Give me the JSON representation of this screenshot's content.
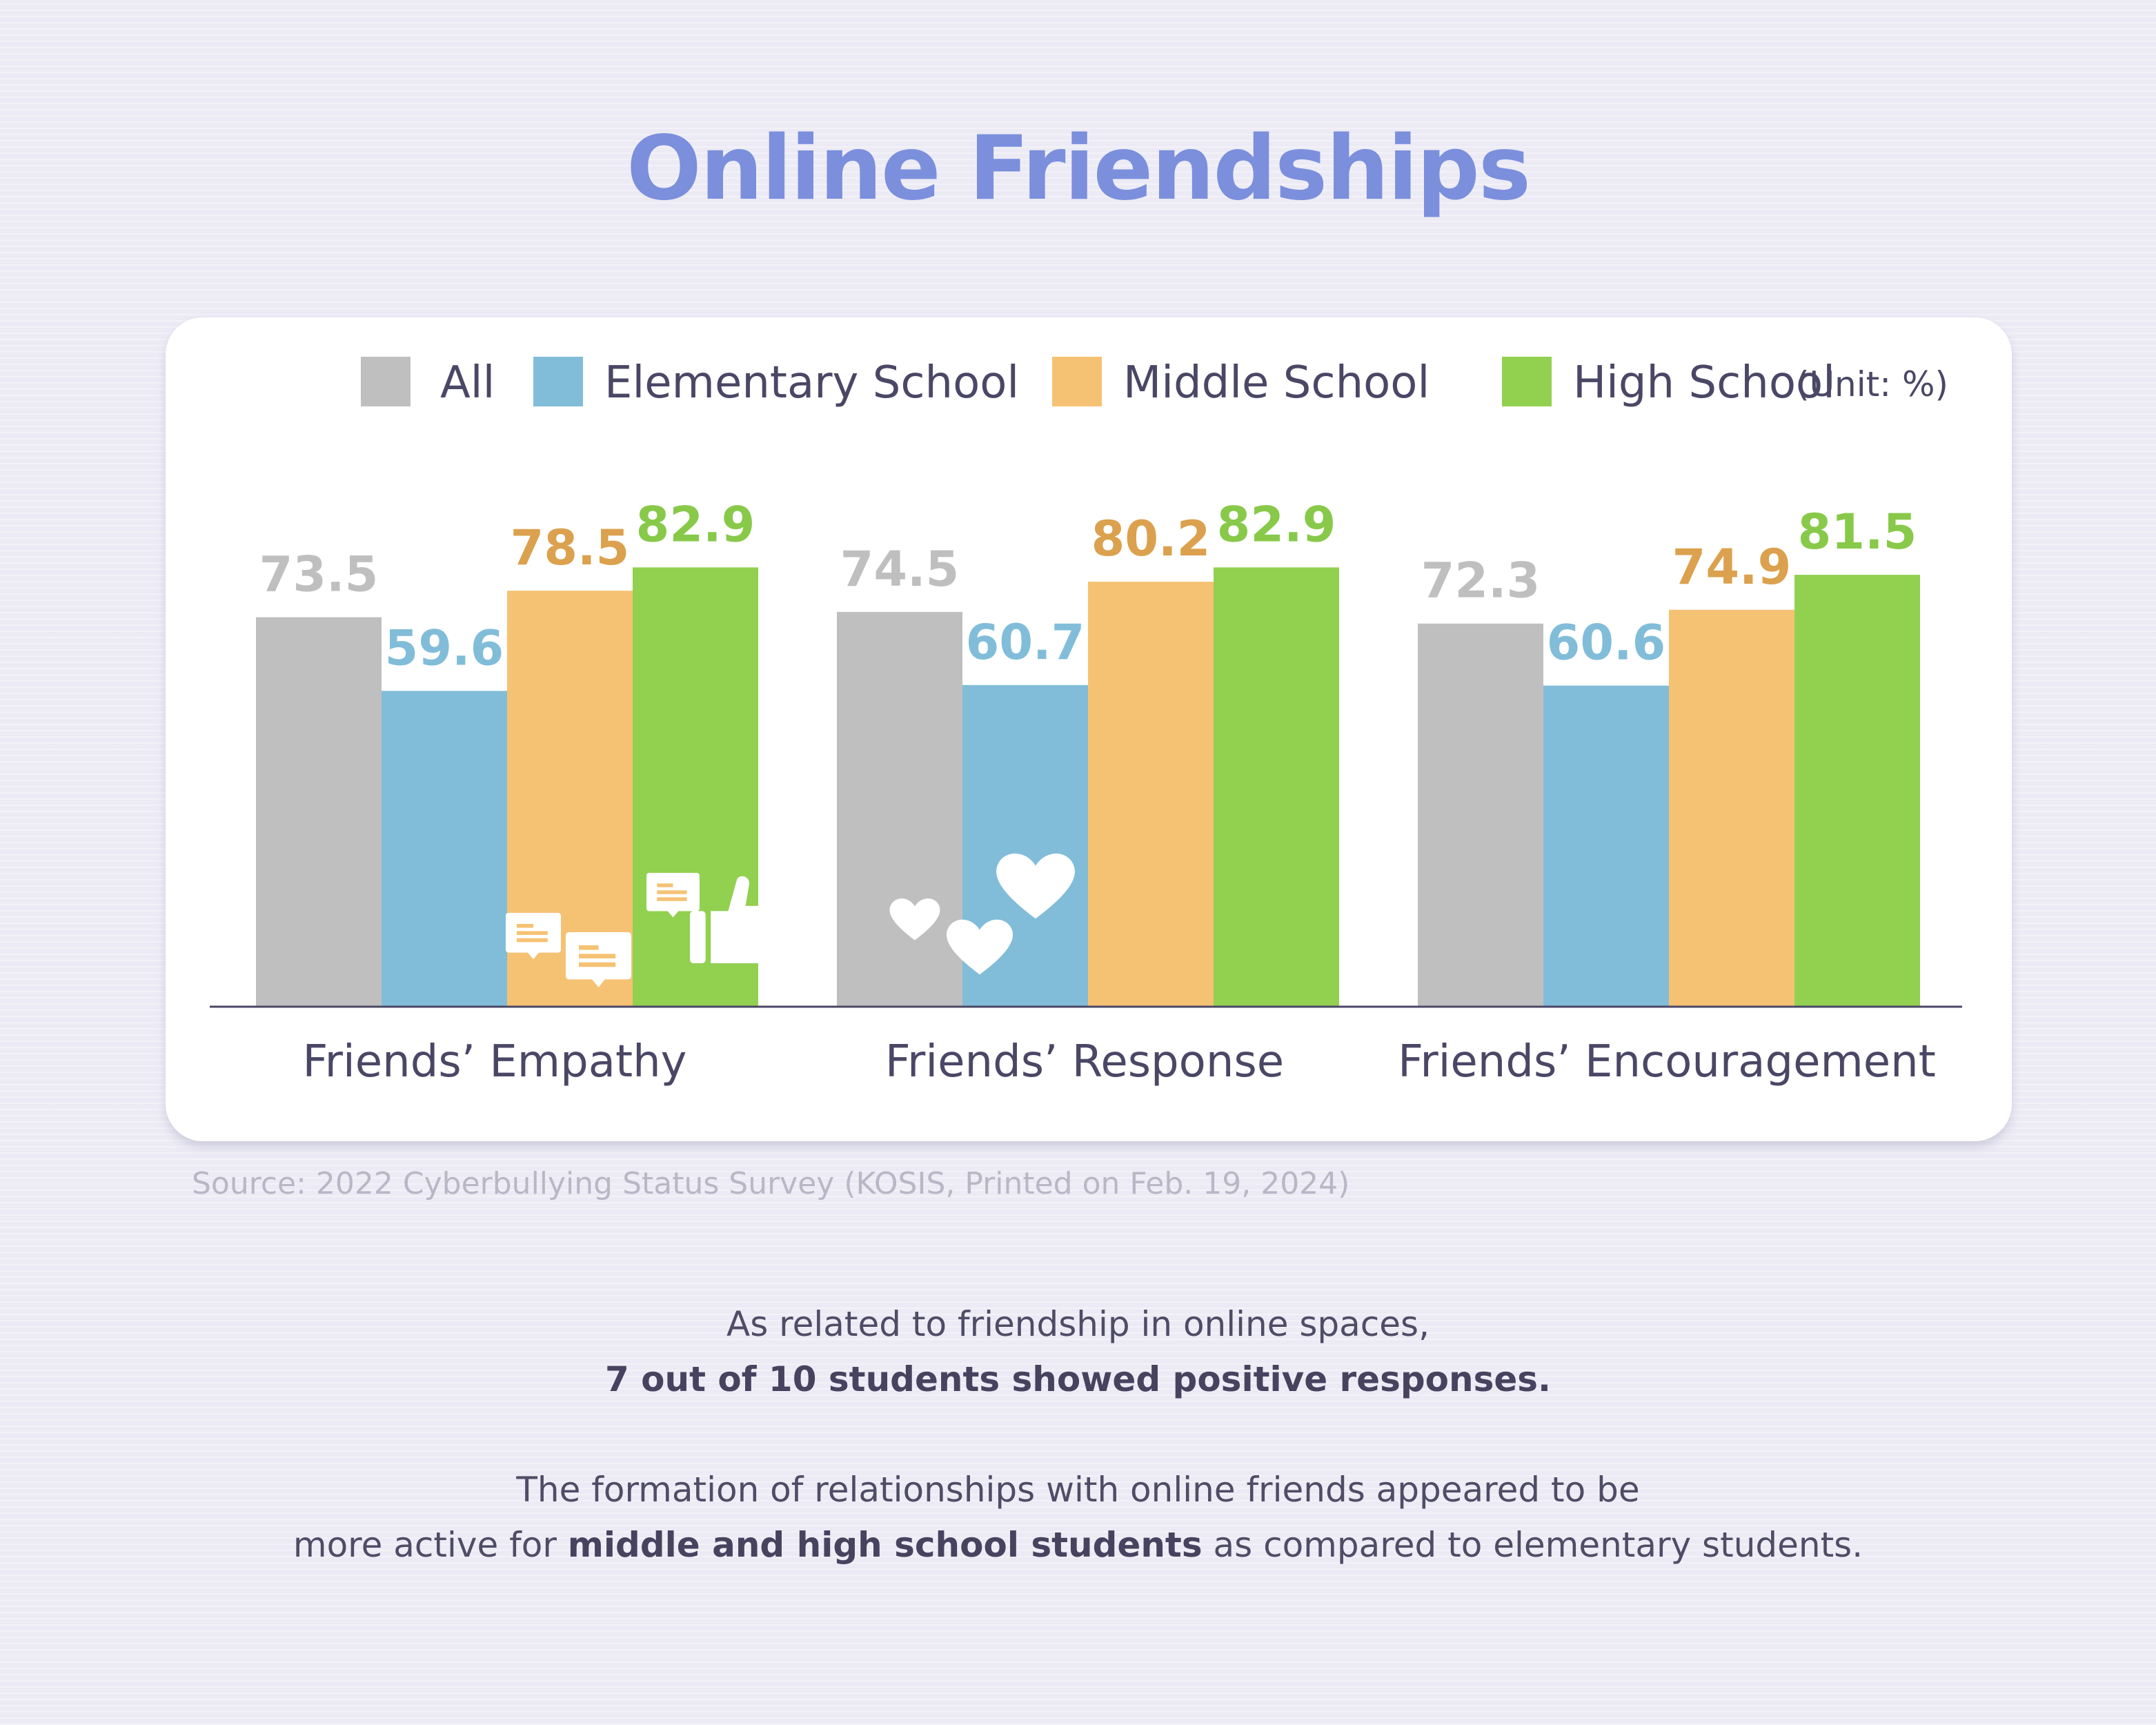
{
  "title": "Online Friendships",
  "colors": {
    "all": "#bfbfbf",
    "elementary": "#81bdd9",
    "middle": "#f5c274",
    "high": "#92d050",
    "all_label": "#bfbfbf",
    "elementary_label": "#81bdd9",
    "middle_label": "#dba14e",
    "high_label": "#88c94a"
  },
  "legend": {
    "items": [
      "All",
      "Elementary School",
      "Middle School",
      "High School"
    ],
    "unit": "(Unit: %)"
  },
  "chart_data": {
    "type": "bar",
    "categories": [
      "Friends’ Empathy",
      "Friends’ Response",
      "Friends’ Encouragement"
    ],
    "series": [
      {
        "name": "All",
        "values": [
          73.5,
          74.5,
          72.3
        ]
      },
      {
        "name": "Elementary School",
        "values": [
          59.6,
          60.7,
          60.6
        ]
      },
      {
        "name": "Middle School",
        "values": [
          78.5,
          80.2,
          74.9
        ]
      },
      {
        "name": "High School",
        "values": [
          82.9,
          82.9,
          81.5
        ]
      }
    ],
    "unit": "%",
    "legend_position": "top-right",
    "grid": false,
    "icons": [
      "thumbs-up-icon",
      "speech-bubble-icon",
      "heart-icon"
    ]
  },
  "source": "Source: 2022 Cyberbullying Status Survey (KOSIS, Printed on Feb. 19, 2024)",
  "text": {
    "line1": "As related to friendship in online spaces,",
    "line2": "7 out of 10 students showed positive responses.",
    "line3": "The formation of relationships with online friends appeared to be",
    "line4_pre": "more active for ",
    "line4_bold": "middle and high school students",
    "line4_post": " as compared to elementary students."
  }
}
